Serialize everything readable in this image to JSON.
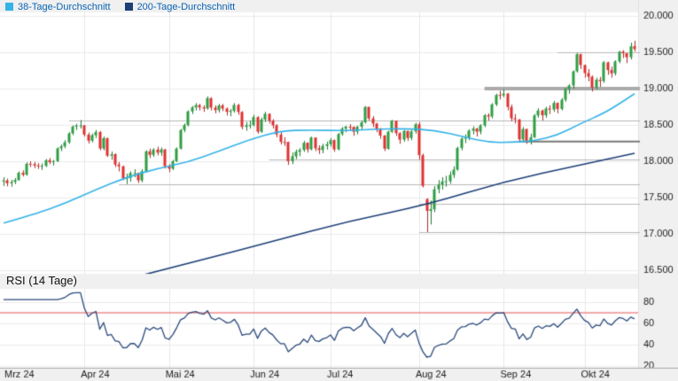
{
  "colors": {
    "background": "#f0f0f0",
    "plot_background": "#ffffff",
    "grid": "#ececec",
    "vgrid": "#e7e7e7",
    "up_candle": "#2f9e44",
    "down_candle": "#e03131",
    "up_wick": "#1f7a33",
    "down_wick": "#b02a2a",
    "ma38": "#35b3e7",
    "ma200": "#1c3f77",
    "rsi_line": "#2b4a7d",
    "overbought_line": "#ee8c8c",
    "level_thin": "#b8b8b8",
    "level_medium": "#787878",
    "level_thick": "#aaaaaa",
    "axis_text": "#1c1c1c",
    "axis_line": "#a8a8a8",
    "legend_text": "#0a64b4"
  },
  "chart_data": {
    "type": "candlestick_with_rsi",
    "title": "",
    "x_axis": {
      "labels": [
        "Mrz 24",
        "Apr 24",
        "Mai 24",
        "Jun 24",
        "Jul 24",
        "Aug 24",
        "Sep 24",
        "Okt 24"
      ],
      "month_start_indices": [
        0,
        21,
        43,
        65,
        85,
        108,
        130,
        151
      ]
    },
    "y_axis": {
      "ticks": [
        20000,
        19500,
        19000,
        18500,
        18000,
        17500,
        17000,
        16500
      ],
      "range": [
        16450,
        20050
      ],
      "number_format": "de-thousands-dot"
    },
    "candles": [
      [
        17720,
        17780,
        17660,
        17735
      ],
      [
        17735,
        17760,
        17655,
        17698
      ],
      [
        17698,
        17745,
        17650,
        17716
      ],
      [
        17716,
        17770,
        17685,
        17743
      ],
      [
        17743,
        17860,
        17730,
        17842
      ],
      [
        17842,
        17875,
        17790,
        17815
      ],
      [
        17815,
        17985,
        17800,
        17965
      ],
      [
        17965,
        18000,
        17920,
        17961
      ],
      [
        17961,
        17990,
        17905,
        17942
      ],
      [
        17942,
        17975,
        17895,
        17937
      ],
      [
        17937,
        17970,
        17880,
        17937
      ],
      [
        17937,
        18030,
        17920,
        18015
      ],
      [
        18015,
        18045,
        17960,
        17987
      ],
      [
        17987,
        18020,
        17940,
        18001
      ],
      [
        18001,
        18190,
        17990,
        18178
      ],
      [
        18178,
        18230,
        18140,
        18205
      ],
      [
        18205,
        18290,
        18180,
        18261
      ],
      [
        18261,
        18400,
        18240,
        18384
      ],
      [
        18384,
        18495,
        18360,
        18477
      ],
      [
        18477,
        18515,
        18430,
        18492
      ],
      [
        18492,
        18567,
        18450,
        18493
      ],
      [
        18493,
        18500,
        18340,
        18367
      ],
      [
        18367,
        18395,
        18245,
        18283
      ],
      [
        18283,
        18380,
        18260,
        18358
      ],
      [
        18358,
        18430,
        18320,
        18403
      ],
      [
        18403,
        18415,
        18150,
        18175
      ],
      [
        18175,
        18340,
        18150,
        18318
      ],
      [
        18318,
        18325,
        18060,
        18077
      ],
      [
        18077,
        18135,
        18020,
        18097
      ],
      [
        18097,
        18110,
        17920,
        17954
      ],
      [
        17954,
        17990,
        17860,
        17930
      ],
      [
        17930,
        17940,
        17740,
        17766
      ],
      [
        17766,
        17830,
        17687,
        17770
      ],
      [
        17770,
        17860,
        17720,
        17837
      ],
      [
        17837,
        17890,
        17780,
        17838
      ],
      [
        17838,
        17845,
        17700,
        17737
      ],
      [
        17737,
        17890,
        17710,
        17861
      ],
      [
        17861,
        18150,
        17850,
        18137
      ],
      [
        18137,
        18175,
        18045,
        18088
      ],
      [
        18088,
        18180,
        18060,
        18161
      ],
      [
        18161,
        18200,
        18080,
        18118
      ],
      [
        18118,
        18190,
        18075,
        18163
      ],
      [
        18163,
        18170,
        17900,
        17932
      ],
      [
        17932,
        17960,
        17850,
        17897
      ],
      [
        17897,
        18020,
        17880,
        18001
      ],
      [
        18001,
        18190,
        17990,
        18175
      ],
      [
        18175,
        18445,
        18160,
        18430
      ],
      [
        18430,
        18520,
        18400,
        18498
      ],
      [
        18498,
        18700,
        18480,
        18686
      ],
      [
        18686,
        18760,
        18650,
        18742
      ],
      [
        18742,
        18800,
        18700,
        18773
      ],
      [
        18773,
        18790,
        18700,
        18742
      ],
      [
        18742,
        18770,
        18680,
        18726
      ],
      [
        18726,
        18893,
        18710,
        18869
      ],
      [
        18869,
        18880,
        18700,
        18739
      ],
      [
        18739,
        18770,
        18660,
        18704
      ],
      [
        18704,
        18790,
        18670,
        18768
      ],
      [
        18768,
        18790,
        18690,
        18726
      ],
      [
        18726,
        18740,
        18630,
        18680
      ],
      [
        18680,
        18720,
        18620,
        18693
      ],
      [
        18693,
        18800,
        18670,
        18775
      ],
      [
        18775,
        18790,
        18640,
        18678
      ],
      [
        18678,
        18690,
        18440,
        18473
      ],
      [
        18473,
        18540,
        18420,
        18497
      ],
      [
        18497,
        18560,
        18450,
        18498
      ],
      [
        18498,
        18640,
        18480,
        18608
      ],
      [
        18608,
        18620,
        18380,
        18406
      ],
      [
        18406,
        18600,
        18390,
        18575
      ],
      [
        18575,
        18680,
        18540,
        18653
      ],
      [
        18653,
        18660,
        18520,
        18557
      ],
      [
        18557,
        18580,
        18450,
        18495
      ],
      [
        18495,
        18510,
        18330,
        18369
      ],
      [
        18369,
        18400,
        18230,
        18266
      ],
      [
        18266,
        18330,
        18210,
        18265
      ],
      [
        18265,
        18270,
        17951,
        18002
      ],
      [
        18002,
        18120,
        17960,
        18068
      ],
      [
        18068,
        18160,
        18030,
        18131
      ],
      [
        18131,
        18180,
        18070,
        18155
      ],
      [
        18155,
        18280,
        18130,
        18254
      ],
      [
        18254,
        18260,
        18120,
        18164
      ],
      [
        18164,
        18340,
        18150,
        18326
      ],
      [
        18326,
        18330,
        18140,
        18178
      ],
      [
        18178,
        18220,
        18100,
        18155
      ],
      [
        18155,
        18240,
        18110,
        18210
      ],
      [
        18210,
        18270,
        18160,
        18235
      ],
      [
        18235,
        18320,
        18200,
        18291
      ],
      [
        18291,
        18300,
        18130,
        18164
      ],
      [
        18164,
        18390,
        18150,
        18374
      ],
      [
        18374,
        18470,
        18350,
        18450
      ],
      [
        18450,
        18490,
        18400,
        18475
      ],
      [
        18475,
        18510,
        18420,
        18472
      ],
      [
        18472,
        18480,
        18350,
        18407
      ],
      [
        18407,
        18490,
        18370,
        18475
      ],
      [
        18475,
        18560,
        18440,
        18535
      ],
      [
        18535,
        18760,
        18520,
        18748
      ],
      [
        18748,
        18750,
        18560,
        18590
      ],
      [
        18590,
        18620,
        18470,
        18518
      ],
      [
        18518,
        18530,
        18400,
        18437
      ],
      [
        18437,
        18460,
        18310,
        18354
      ],
      [
        18354,
        18360,
        18140,
        18172
      ],
      [
        18172,
        18420,
        18160,
        18407
      ],
      [
        18407,
        18570,
        18390,
        18557
      ],
      [
        18557,
        18560,
        18350,
        18387
      ],
      [
        18387,
        18400,
        18240,
        18298
      ],
      [
        18298,
        18430,
        18270,
        18417
      ],
      [
        18417,
        18420,
        18280,
        18320
      ],
      [
        18320,
        18430,
        18290,
        18411
      ],
      [
        18411,
        18530,
        18380,
        18509
      ],
      [
        18509,
        18540,
        18025,
        18083
      ],
      [
        18083,
        18105,
        17640,
        17661
      ],
      [
        17480,
        17490,
        17025,
        17317
      ],
      [
        17317,
        17460,
        17130,
        17340
      ],
      [
        17340,
        17660,
        17300,
        17615
      ],
      [
        17615,
        17740,
        17560,
        17680
      ],
      [
        17680,
        17780,
        17610,
        17722
      ],
      [
        17722,
        17800,
        17650,
        17726
      ],
      [
        17726,
        17860,
        17690,
        17812
      ],
      [
        17812,
        17930,
        17770,
        17885
      ],
      [
        17885,
        18200,
        17870,
        18183
      ],
      [
        18183,
        18330,
        18150,
        18310
      ],
      [
        18310,
        18370,
        18250,
        18322
      ],
      [
        18322,
        18440,
        18290,
        18421
      ],
      [
        18421,
        18480,
        18370,
        18449
      ],
      [
        18449,
        18460,
        18340,
        18408
      ],
      [
        18408,
        18510,
        18370,
        18493
      ],
      [
        18493,
        18650,
        18470,
        18633
      ],
      [
        18633,
        18660,
        18560,
        18617
      ],
      [
        18617,
        18800,
        18590,
        18782
      ],
      [
        18782,
        18930,
        18760,
        18912
      ],
      [
        18912,
        18970,
        18850,
        18907
      ],
      [
        18907,
        18990,
        18880,
        18931
      ],
      [
        18931,
        18940,
        18700,
        18747
      ],
      [
        18747,
        18780,
        18550,
        18592
      ],
      [
        18592,
        18650,
        18520,
        18576
      ],
      [
        18576,
        18580,
        18270,
        18302
      ],
      [
        18302,
        18470,
        18280,
        18443
      ],
      [
        18443,
        18450,
        18240,
        18266
      ],
      [
        18266,
        18380,
        18230,
        18330
      ],
      [
        18330,
        18650,
        18320,
        18631
      ],
      [
        18631,
        18730,
        18600,
        18699
      ],
      [
        18699,
        18710,
        18560,
        18633
      ],
      [
        18633,
        18750,
        18600,
        18726
      ],
      [
        18726,
        18770,
        18650,
        18711
      ],
      [
        18711,
        18830,
        18680,
        18803
      ],
      [
        18803,
        18810,
        18660,
        18720
      ],
      [
        18720,
        18870,
        18700,
        18847
      ],
      [
        18847,
        19010,
        18820,
        18997
      ],
      [
        18997,
        19060,
        18930,
        19043
      ],
      [
        19043,
        19250,
        19000,
        19238
      ],
      [
        19238,
        19491,
        19220,
        19473
      ],
      [
        19473,
        19480,
        19270,
        19325
      ],
      [
        19325,
        19330,
        19150,
        19213
      ],
      [
        19213,
        19270,
        19100,
        19164
      ],
      [
        19164,
        19180,
        18960,
        19015
      ],
      [
        19015,
        19150,
        18990,
        19121
      ],
      [
        19121,
        19160,
        19025,
        19104
      ],
      [
        19104,
        19380,
        19080,
        19362
      ],
      [
        19362,
        19370,
        19190,
        19255
      ],
      [
        19255,
        19300,
        19150,
        19211
      ],
      [
        19211,
        19390,
        19180,
        19374
      ],
      [
        19374,
        19520,
        19350,
        19508
      ],
      [
        19508,
        19530,
        19420,
        19486
      ],
      [
        19486,
        19490,
        19350,
        19432
      ],
      [
        19432,
        19633,
        19400,
        19583
      ],
      [
        19583,
        19658,
        19510,
        19545
      ]
    ],
    "overlays": {
      "ma38": {
        "label": "38-Tage-Durchschnitt",
        "points": [
          [
            0,
            17150
          ],
          [
            8,
            17270
          ],
          [
            16,
            17420
          ],
          [
            24,
            17610
          ],
          [
            32,
            17780
          ],
          [
            40,
            17900
          ],
          [
            48,
            17990
          ],
          [
            56,
            18140
          ],
          [
            64,
            18300
          ],
          [
            72,
            18420
          ],
          [
            80,
            18430
          ],
          [
            88,
            18420
          ],
          [
            96,
            18440
          ],
          [
            104,
            18450
          ],
          [
            112,
            18430
          ],
          [
            120,
            18330
          ],
          [
            126,
            18260
          ],
          [
            132,
            18260
          ],
          [
            138,
            18280
          ],
          [
            144,
            18360
          ],
          [
            150,
            18520
          ],
          [
            156,
            18660
          ],
          [
            160,
            18790
          ],
          [
            164,
            18930
          ]
        ]
      },
      "ma200": {
        "label": "200-Tage-Durchschnitt",
        "points": [
          [
            30,
            16350
          ],
          [
            50,
            16620
          ],
          [
            70,
            16900
          ],
          [
            90,
            17180
          ],
          [
            110,
            17400
          ],
          [
            130,
            17720
          ],
          [
            150,
            17950
          ],
          [
            164,
            18110
          ]
        ]
      }
    },
    "levels": [
      {
        "value": 18567,
        "from_index": 17,
        "style": "thin"
      },
      {
        "value": 17687,
        "from_index": 30,
        "style": "thin"
      },
      {
        "value": 18030,
        "from_index": 69,
        "style": "thin"
      },
      {
        "value": 17420,
        "from_index": 108,
        "style": "thin"
      },
      {
        "value": 17025,
        "from_index": 108,
        "style": "thin"
      },
      {
        "value": 19000,
        "from_index": 125,
        "style": "thick"
      },
      {
        "value": 18270,
        "from_index": 134,
        "style": "medium"
      },
      {
        "value": 19500,
        "from_index": 144,
        "style": "thin"
      }
    ],
    "rsi": {
      "title": "RSI (14 Tage)",
      "period": 14,
      "ticks": [
        80,
        60,
        40,
        20
      ],
      "overbought_level": 70,
      "range": [
        15,
        90
      ]
    }
  }
}
